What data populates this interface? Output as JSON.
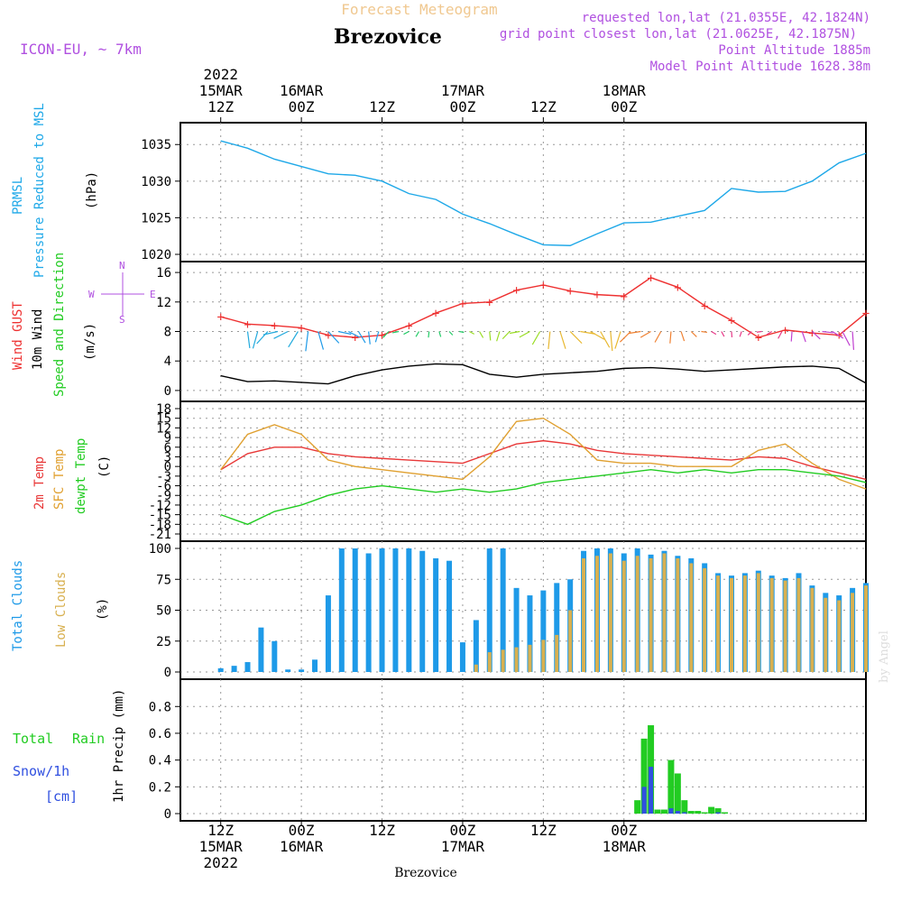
{
  "header": {
    "title": "Forecast Meteogram",
    "station": "Brezovice",
    "model": "ICON-EU, ~ 7km",
    "requested": "requested lon,lat (21.0355E, 42.1824N)",
    "gridpoint": "grid point closest lon,lat (21.0625E, 42.1875N)",
    "point_alt": "Point Altitude 1885m",
    "model_alt": "Model Point Altitude 1628.38m",
    "footer_station": "Brezovice",
    "watermark": "by Angel"
  },
  "time_axis": {
    "labels": [
      {
        "hour": "12Z",
        "date": "15MAR",
        "year": "2022"
      },
      {
        "hour": "00Z",
        "date": "16MAR",
        "year": ""
      },
      {
        "hour": "12Z",
        "date": "",
        "year": ""
      },
      {
        "hour": "00Z",
        "date": "17MAR",
        "year": ""
      },
      {
        "hour": "12Z",
        "date": "",
        "year": ""
      },
      {
        "hour": "00Z",
        "date": "18MAR",
        "year": ""
      }
    ]
  },
  "panel_labels": {
    "pressure": [
      "PRMSL",
      "Pressure Reduced to MSL",
      "(hPa)"
    ],
    "wind": [
      "Wind GUST",
      "10m Wind",
      "Speed and Direction",
      "(m/s)"
    ],
    "compass": {
      "w": "W",
      "e": "E",
      "n": "N",
      "s": "S"
    },
    "temp": [
      "2m Temp",
      "SFC Temp",
      "dewpt Temp",
      "(C)"
    ],
    "clouds": [
      "Total Clouds",
      "Low Clouds",
      "(%)"
    ],
    "precip": [
      "Total",
      "Rain",
      "Snow/1h",
      "[cm]",
      "1hr Precip (mm)"
    ]
  },
  "colors": {
    "pressure": "#1ea8e8",
    "gust": "#ee3030",
    "wind": "#000000",
    "temp2m": "#e83838",
    "sfc": "#e0a030",
    "dew": "#22cc22",
    "total_cloud": "#1e9ae8",
    "low_cloud": "#d8b050",
    "rain": "#22cc22",
    "snow": "#3050e0",
    "title": "#f0c890",
    "meta": "#b050e0"
  },
  "chart_data": [
    {
      "type": "line",
      "title": "PRMSL Pressure Reduced to MSL",
      "ylabel": "(hPa)",
      "ylim": [
        1020,
        1037
      ],
      "yticks": [
        1020,
        1025,
        1030,
        1035
      ],
      "x_hours": [
        0,
        4,
        8,
        12,
        16,
        20,
        24,
        28,
        32,
        36,
        40,
        44,
        48,
        52,
        56,
        60,
        64,
        68,
        72,
        76,
        80,
        84,
        88,
        92,
        96
      ],
      "series": [
        {
          "name": "PRMSL",
          "values": [
            1035.5,
            1034.5,
            1033,
            1032,
            1031,
            1030.8,
            1030,
            1028.3,
            1027.5,
            1025.5,
            1024.2,
            1022.7,
            1021.3,
            1021.2,
            1022.8,
            1024.3,
            1024.4,
            1025.2,
            1026,
            1029,
            1028.5,
            1028.6,
            1030,
            1032.5,
            1033.8
          ]
        }
      ]
    },
    {
      "type": "line",
      "title": "Wind GUST / 10m Wind Speed and Direction",
      "ylabel": "(m/s)",
      "ylim": [
        -0.5,
        16.5
      ],
      "yticks": [
        0,
        4,
        8,
        12,
        16
      ],
      "x_hours": [
        0,
        4,
        8,
        12,
        16,
        20,
        24,
        28,
        32,
        36,
        40,
        44,
        48,
        52,
        56,
        60,
        64,
        68,
        72,
        76,
        80,
        84,
        88,
        92,
        96
      ],
      "series": [
        {
          "name": "Wind GUST",
          "values": [
            10,
            9,
            8.8,
            8.5,
            7.5,
            7.2,
            7.5,
            8.8,
            10.5,
            11.8,
            12,
            13.6,
            14.3,
            13.5,
            13,
            12.8,
            15.3,
            14,
            11.5,
            9.5,
            7.2,
            8.2,
            7.8,
            7.5,
            10.5
          ]
        },
        {
          "name": "10m Wind",
          "values": [
            2,
            1.2,
            1.3,
            1.1,
            0.9,
            2,
            2.8,
            3.3,
            3.6,
            3.5,
            2.2,
            1.8,
            2.2,
            2.4,
            2.6,
            3,
            3.1,
            2.9,
            2.6,
            2.8,
            3.0,
            3.2,
            3.3,
            3.0,
            1.0
          ]
        }
      ],
      "wind_direction_arrows": true
    },
    {
      "type": "line",
      "title": "2m Temp / SFC Temp / dewpt Temp",
      "ylabel": "(C)",
      "ylim": [
        -21,
        18
      ],
      "yticks": [
        18,
        15,
        12,
        9,
        6,
        3,
        0,
        -3,
        -6,
        -9,
        -12,
        -15,
        -18,
        -21
      ],
      "x_hours": [
        0,
        4,
        8,
        12,
        16,
        20,
        24,
        28,
        32,
        36,
        40,
        44,
        48,
        52,
        56,
        60,
        64,
        68,
        72,
        76,
        80,
        84,
        88,
        92,
        96
      ],
      "series": [
        {
          "name": "2m Temp",
          "values": [
            -1,
            4,
            6,
            6,
            4,
            3,
            2.5,
            2,
            1.5,
            1,
            4,
            7,
            8,
            7,
            5,
            4,
            3.5,
            3,
            2.5,
            2,
            3,
            2.5,
            0,
            -2,
            -4
          ]
        },
        {
          "name": "SFC Temp",
          "values": [
            -1,
            10,
            13,
            10,
            2,
            0,
            -1,
            -2,
            -3,
            -4,
            3,
            14,
            15,
            10,
            2,
            1,
            1,
            0,
            0,
            0,
            5,
            7,
            1,
            -4,
            -7
          ]
        },
        {
          "name": "dewpt Temp",
          "values": [
            -15,
            -18,
            -14,
            -12,
            -9,
            -7,
            -6,
            -7,
            -8,
            -7,
            -8,
            -7,
            -5,
            -4,
            -3,
            -2,
            -1,
            -2,
            -1,
            -2,
            -1,
            -1,
            -2,
            -3,
            -5
          ]
        }
      ]
    },
    {
      "type": "bar",
      "title": "Total Clouds / Low Clouds",
      "ylabel": "(%)",
      "ylim": [
        0,
        100
      ],
      "yticks": [
        0,
        25,
        50,
        75,
        100
      ],
      "x_hours": [
        0,
        2,
        4,
        6,
        8,
        10,
        12,
        14,
        16,
        18,
        20,
        22,
        24,
        26,
        28,
        30,
        32,
        34,
        36,
        38,
        40,
        42,
        44,
        46,
        48,
        50,
        52,
        54,
        56,
        58,
        60,
        62,
        64,
        66,
        68,
        70,
        72,
        74,
        76,
        78,
        80,
        82,
        84,
        86,
        88,
        90,
        92,
        94,
        96
      ],
      "series": [
        {
          "name": "Total Clouds",
          "values": [
            3,
            5,
            8,
            36,
            25,
            2,
            2,
            10,
            62,
            100,
            100,
            96,
            100,
            100,
            100,
            98,
            92,
            90,
            24,
            42,
            100,
            100,
            68,
            62,
            66,
            72,
            75,
            98,
            100,
            100,
            96,
            100,
            95,
            98,
            94,
            92,
            88,
            80,
            78,
            80,
            82,
            78,
            76,
            80,
            70,
            64,
            62,
            68,
            72
          ]
        },
        {
          "name": "Low Clouds",
          "values": [
            0,
            0,
            0,
            0,
            0,
            0,
            0,
            0,
            0,
            0,
            0,
            0,
            0,
            0,
            0,
            0,
            0,
            0,
            0,
            6,
            16,
            18,
            20,
            22,
            26,
            30,
            50,
            92,
            94,
            96,
            90,
            94,
            92,
            96,
            92,
            88,
            84,
            78,
            76,
            78,
            80,
            76,
            74,
            76,
            68,
            60,
            58,
            64,
            70
          ]
        }
      ]
    },
    {
      "type": "bar",
      "title": "Total Rain Snow/1h",
      "ylabel": "1hr Precip (mm)",
      "ylim": [
        0,
        0.95
      ],
      "yticks": [
        0,
        0.2,
        0.4,
        0.6,
        0.8
      ],
      "x_hours": [
        62,
        63,
        64,
        65,
        66,
        67,
        68,
        69,
        70,
        71,
        72,
        73,
        74,
        75,
        76
      ],
      "series": [
        {
          "name": "Total Rain",
          "values": [
            0.1,
            0.56,
            0.66,
            0.03,
            0.03,
            0.4,
            0.3,
            0.1,
            0.02,
            0.02,
            0.01,
            0.05,
            0.04,
            0.01,
            0.0
          ]
        },
        {
          "name": "Snow/1h",
          "values": [
            0,
            0.2,
            0.35,
            0,
            0,
            0.04,
            0.02,
            0.01,
            0,
            0,
            0,
            0,
            0.01,
            0,
            0
          ]
        }
      ]
    }
  ]
}
